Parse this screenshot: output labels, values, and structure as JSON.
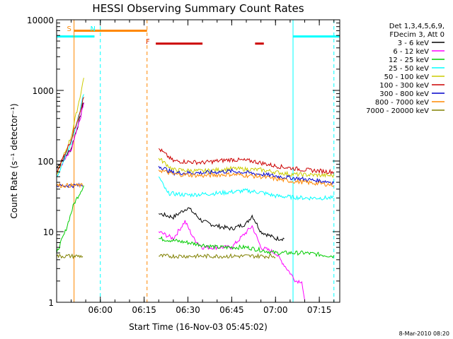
{
  "chart_data": {
    "type": "line",
    "title": "HESSI Observing Summary Count Rates",
    "xlabel": "Start Time (16-Nov-03 05:45:02)",
    "ylabel": "Count Rate (s⁻¹ detector⁻¹)",
    "y_scale": "log",
    "ylim": [
      1,
      10000
    ],
    "xlim": [
      "05:45:02",
      "07:22:00"
    ],
    "x_ticks": [
      "06:00",
      "06:15",
      "06:30",
      "06:45",
      "07:00",
      "07:15"
    ],
    "y_ticks": [
      "1",
      "10",
      "100",
      "1000",
      "10000"
    ],
    "legend_header": [
      "Det 1,3,4,5,6,9,",
      "FDecim 3, Att 0"
    ],
    "legend_position": "top-right",
    "series": [
      {
        "name": "3 - 6 keV",
        "color": "#000000",
        "points": [
          [
            "05:45:02",
            80
          ],
          [
            "05:50:00",
            150
          ],
          [
            "05:53:00",
            400
          ],
          [
            "05:54:20",
            700
          ],
          [
            "06:20:00",
            18
          ],
          [
            "06:25:00",
            16
          ],
          [
            "06:30:00",
            22
          ],
          [
            "06:35:00",
            14
          ],
          [
            "06:40:00",
            12
          ],
          [
            "06:45:00",
            11
          ],
          [
            "06:50:00",
            13
          ],
          [
            "06:52:00",
            17
          ],
          [
            "06:55:00",
            10
          ],
          [
            "07:00:00",
            8
          ],
          [
            "07:03:00",
            8
          ]
        ]
      },
      {
        "name": "6 - 12 keV",
        "color": "#ff00ff",
        "points": [
          [
            "05:45:02",
            70
          ],
          [
            "05:50:00",
            140
          ],
          [
            "05:53:00",
            380
          ],
          [
            "05:54:20",
            650
          ],
          [
            "06:20:00",
            10
          ],
          [
            "06:25:00",
            8
          ],
          [
            "06:29:00",
            14
          ],
          [
            "06:32:00",
            8
          ],
          [
            "06:35:00",
            6
          ],
          [
            "06:45:00",
            6
          ],
          [
            "06:52:00",
            12
          ],
          [
            "06:55:00",
            6
          ],
          [
            "07:00:00",
            5
          ],
          [
            "07:07:00",
            2
          ],
          [
            "07:09:00",
            2
          ],
          [
            "07:10:00",
            1
          ]
        ]
      },
      {
        "name": "12 - 25 keV",
        "color": "#00cc00",
        "points": [
          [
            "05:45:02",
            5
          ],
          [
            "05:48:00",
            10
          ],
          [
            "05:51:00",
            25
          ],
          [
            "05:54:20",
            45
          ],
          [
            "06:20:00",
            8
          ],
          [
            "06:30:00",
            7
          ],
          [
            "06:40:00",
            6
          ],
          [
            "06:50:00",
            6
          ],
          [
            "07:00:00",
            5
          ],
          [
            "07:10:00",
            5
          ],
          [
            "07:20:00",
            4.5
          ]
        ]
      },
      {
        "name": "25 - 50 keV",
        "color": "#00ffff",
        "points": [
          [
            "05:45:02",
            60
          ],
          [
            "05:50:00",
            180
          ],
          [
            "05:53:00",
            500
          ],
          [
            "05:54:20",
            900
          ],
          [
            "06:20:00",
            60
          ],
          [
            "06:23:00",
            35
          ],
          [
            "06:30:00",
            33
          ],
          [
            "06:40:00",
            35
          ],
          [
            "06:50:00",
            38
          ],
          [
            "06:55:00",
            36
          ],
          [
            "07:00:00",
            32
          ],
          [
            "07:10:00",
            30
          ],
          [
            "07:20:00",
            30
          ]
        ]
      },
      {
        "name": "50 - 100 keV",
        "color": "#cccc00",
        "points": [
          [
            "05:45:02",
            65
          ],
          [
            "05:50:00",
            220
          ],
          [
            "05:53:00",
            800
          ],
          [
            "05:54:20",
            1500
          ],
          [
            "06:20:00",
            110
          ],
          [
            "06:25:00",
            75
          ],
          [
            "06:35:00",
            72
          ],
          [
            "06:45:00",
            78
          ],
          [
            "06:55:00",
            75
          ],
          [
            "07:05:00",
            65
          ],
          [
            "07:20:00",
            62
          ]
        ]
      },
      {
        "name": "100 - 300 keV",
        "color": "#cc0000",
        "points": [
          [
            "05:45:02",
            70
          ],
          [
            "05:50:00",
            200
          ],
          [
            "05:53:00",
            500
          ],
          [
            "05:54:20",
            800
          ],
          [
            "06:20:00",
            150
          ],
          [
            "06:25:00",
            100
          ],
          [
            "06:35:00",
            95
          ],
          [
            "06:45:00",
            105
          ],
          [
            "06:52:00",
            100
          ],
          [
            "07:00:00",
            85
          ],
          [
            "07:10:00",
            75
          ],
          [
            "07:20:00",
            70
          ]
        ]
      },
      {
        "name": "300 - 800 keV",
        "color": "#0000cc",
        "points": [
          [
            "05:45:02",
            45
          ],
          [
            "05:54:00",
            45
          ],
          [
            "06:20:00",
            85
          ],
          [
            "06:25:00",
            68
          ],
          [
            "06:35:00",
            68
          ],
          [
            "06:45:00",
            72
          ],
          [
            "06:55:00",
            65
          ],
          [
            "07:05:00",
            58
          ],
          [
            "07:20:00",
            50
          ]
        ]
      },
      {
        "name": "800 - 7000 keV",
        "color": "#ff8800",
        "points": [
          [
            "05:45:02",
            45
          ],
          [
            "05:54:00",
            45
          ],
          [
            "06:20:00",
            75
          ],
          [
            "06:25:00",
            65
          ],
          [
            "06:35:00",
            62
          ],
          [
            "06:45:00",
            65
          ],
          [
            "06:55:00",
            60
          ],
          [
            "07:05:00",
            52
          ],
          [
            "07:20:00",
            46
          ]
        ]
      },
      {
        "name": "7000 - 20000 keV",
        "color": "#808000",
        "points": [
          [
            "05:45:02",
            4.5
          ],
          [
            "05:54:00",
            4.5
          ],
          [
            "06:20:00",
            4.5
          ],
          [
            "06:30:00",
            4.5
          ],
          [
            "06:45:00",
            4.5
          ],
          [
            "07:00:00",
            4.5
          ],
          [
            "07:20:00",
            4.5
          ]
        ]
      }
    ],
    "annotations": [
      {
        "text": "S",
        "color": "#ff8800",
        "x": "05:50:00"
      },
      {
        "text": "N",
        "color": "#00ffff",
        "x": "05:58:00"
      },
      {
        "text": "F",
        "color": "#cc0000",
        "x": "06:17:00"
      }
    ],
    "flag_bars": [
      {
        "color": "#00ffff",
        "start": "05:45:02",
        "end": "05:58:00",
        "level": 5800
      },
      {
        "color": "#ff8800",
        "start": "05:51:00",
        "end": "06:16:00",
        "level": 7000
      },
      {
        "color": "#cc0000",
        "start": "06:19:00",
        "end": "06:35:00",
        "level": 4600
      },
      {
        "color": "#cc0000",
        "start": "06:53:00",
        "end": "06:56:00",
        "level": 4600
      },
      {
        "color": "#00ffff",
        "start": "07:06:00",
        "end": "07:22:00",
        "level": 5800
      }
    ],
    "vertical_lines": [
      {
        "color": "#00ffff",
        "time": "05:45:02",
        "style": "solid"
      },
      {
        "color": "#ff8800",
        "time": "05:51:00",
        "style": "solid"
      },
      {
        "color": "#00ffff",
        "time": "06:00:00",
        "style": "dashed"
      },
      {
        "color": "#ff8800",
        "time": "06:16:00",
        "style": "dashed"
      },
      {
        "color": "#00ffff",
        "time": "07:06:00",
        "style": "solid"
      },
      {
        "color": "#00ffff",
        "time": "07:20:00",
        "style": "dashed"
      }
    ]
  },
  "footer_date": "8-Mar-2010 08:20"
}
